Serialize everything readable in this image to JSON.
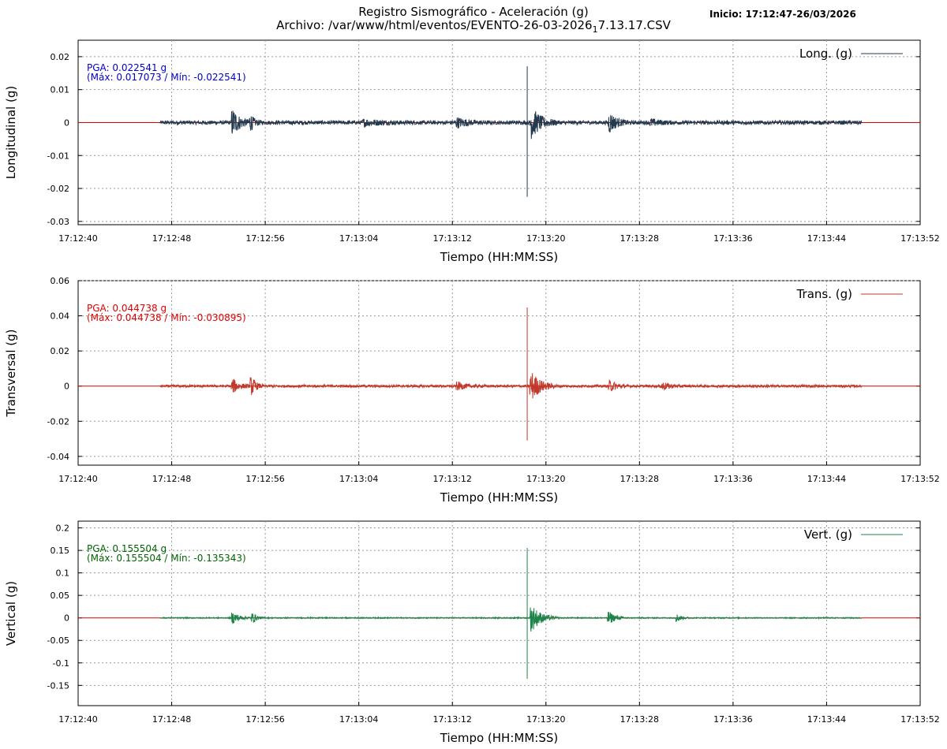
{
  "header": {
    "title": "Registro Sismográfico - Aceleración (g)",
    "file_prefix": "Archivo: /var/www/html/eventos/EVENTO-26-03-2026",
    "file_subscript": "1",
    "file_suffix": "7.13.17.CSV",
    "start_label": "Inicio: 17:12:47-26/03/2026"
  },
  "colors": {
    "long": "#233a4e",
    "trans": "#c0392b",
    "vert": "#1e8449",
    "zero_line": "#e00000",
    "pga_long": "#0000cc",
    "pga_trans": "#e00000",
    "pga_vert": "#006400",
    "grid": "#999999"
  },
  "chart_data": [
    {
      "type": "line",
      "id": "long",
      "xlabel": "Tiempo (HH:MM:SS)",
      "ylabel": "Longitudinal (g)",
      "legend": "Long. (g)",
      "legend_position": "top-right",
      "pga_text": "PGA: 0.022541 g",
      "maxmin_text": "(Máx: 0.017073 / Mín: -0.022541)",
      "pga": 0.022541,
      "max": 0.017073,
      "min": -0.022541,
      "ylim": [
        -0.031,
        0.025
      ],
      "yticks": [
        0.02,
        0.01,
        0,
        -0.01,
        -0.02,
        -0.03
      ],
      "ytick_labels": [
        "0.02",
        "0.01",
        "0",
        "-0.01",
        "-0.02",
        "-0.03"
      ],
      "xlim_seconds": [
        40,
        112
      ],
      "xtick_labels": [
        "17:12:40",
        "17:12:48",
        "17:12:56",
        "17:13:04",
        "17:13:12",
        "17:13:20",
        "17:13:28",
        "17:13:36",
        "17:13:44",
        "17:13:52"
      ],
      "grid": true,
      "trace": {
        "start_s": 47,
        "end_s": 107,
        "noise": 0.0006,
        "bursts": [
          {
            "t": 53.3,
            "amp": 0.0038,
            "dur": 1.6
          },
          {
            "t": 54.8,
            "amp": 0.0018,
            "dur": 1.0
          },
          {
            "t": 64.5,
            "amp": 0.0008,
            "dur": 4.0
          },
          {
            "t": 72.5,
            "amp": 0.0012,
            "dur": 2.5
          },
          {
            "t": 78.8,
            "amp": 0.0045,
            "dur": 2.2
          },
          {
            "t": 85.5,
            "amp": 0.0028,
            "dur": 1.6
          },
          {
            "t": 89.0,
            "amp": 0.0009,
            "dur": 2.0
          }
        ],
        "spike_t": 78.4,
        "spike_max": 0.017073,
        "spike_min": -0.022541
      }
    },
    {
      "type": "line",
      "id": "trans",
      "xlabel": "Tiempo (HH:MM:SS)",
      "ylabel": "Transversal (g)",
      "legend": "Trans. (g)",
      "legend_position": "top-right",
      "pga_text": "PGA: 0.044738 g",
      "maxmin_text": "(Máx: 0.044738 / Mín: -0.030895)",
      "pga": 0.044738,
      "max": 0.044738,
      "min": -0.030895,
      "ylim": [
        -0.045,
        0.06
      ],
      "yticks": [
        0.06,
        0.04,
        0.02,
        0,
        -0.02,
        -0.04
      ],
      "ytick_labels": [
        "0.06",
        "0.04",
        "0.02",
        "0",
        "-0.02",
        "-0.04"
      ],
      "xlim_seconds": [
        40,
        112
      ],
      "xtick_labels": [
        "17:12:40",
        "17:12:48",
        "17:12:56",
        "17:13:04",
        "17:13:12",
        "17:13:20",
        "17:13:28",
        "17:13:36",
        "17:13:44",
        "17:13:52"
      ],
      "grid": true,
      "trace": {
        "start_s": 47,
        "end_s": 107,
        "noise": 0.0007,
        "bursts": [
          {
            "t": 53.3,
            "amp": 0.0035,
            "dur": 1.6
          },
          {
            "t": 54.9,
            "amp": 0.0045,
            "dur": 1.0
          },
          {
            "t": 72.5,
            "amp": 0.002,
            "dur": 2.0
          },
          {
            "t": 78.8,
            "amp": 0.008,
            "dur": 2.2
          },
          {
            "t": 85.5,
            "amp": 0.003,
            "dur": 1.6
          },
          {
            "t": 90.0,
            "amp": 0.002,
            "dur": 2.0
          }
        ],
        "spike_t": 78.4,
        "spike_max": 0.044738,
        "spike_min": -0.030895
      }
    },
    {
      "type": "line",
      "id": "vert",
      "xlabel": "Tiempo (HH:MM:SS)",
      "ylabel": "Vertical (g)",
      "legend": "Vert. (g)",
      "legend_position": "top-right",
      "pga_text": "PGA: 0.155504 g",
      "maxmin_text": "(Máx: 0.155504 / Mín: -0.135343)",
      "pga": 0.155504,
      "max": 0.155504,
      "min": -0.135343,
      "ylim": [
        -0.195,
        0.215
      ],
      "yticks": [
        0.2,
        0.15,
        0.1,
        0.05,
        0,
        -0.05,
        -0.1,
        -0.15
      ],
      "ytick_labels": [
        "0.2",
        "0.15",
        "0.1",
        "0.05",
        "0",
        "-0.05",
        "-0.1",
        "-0.15"
      ],
      "xlim_seconds": [
        40,
        112
      ],
      "xtick_labels": [
        "17:12:40",
        "17:12:48",
        "17:12:56",
        "17:13:04",
        "17:13:12",
        "17:13:20",
        "17:13:28",
        "17:13:36",
        "17:13:44",
        "17:13:52"
      ],
      "grid": true,
      "trace": {
        "start_s": 47,
        "end_s": 107,
        "noise": 0.0012,
        "bursts": [
          {
            "t": 53.3,
            "amp": 0.012,
            "dur": 1.6
          },
          {
            "t": 55.0,
            "amp": 0.01,
            "dur": 1.0
          },
          {
            "t": 78.8,
            "amp": 0.03,
            "dur": 2.2
          },
          {
            "t": 85.4,
            "amp": 0.014,
            "dur": 1.6
          },
          {
            "t": 91.3,
            "amp": 0.008,
            "dur": 1.0
          }
        ],
        "spike_t": 78.4,
        "spike_max": 0.155504,
        "spike_min": -0.135343
      }
    }
  ]
}
